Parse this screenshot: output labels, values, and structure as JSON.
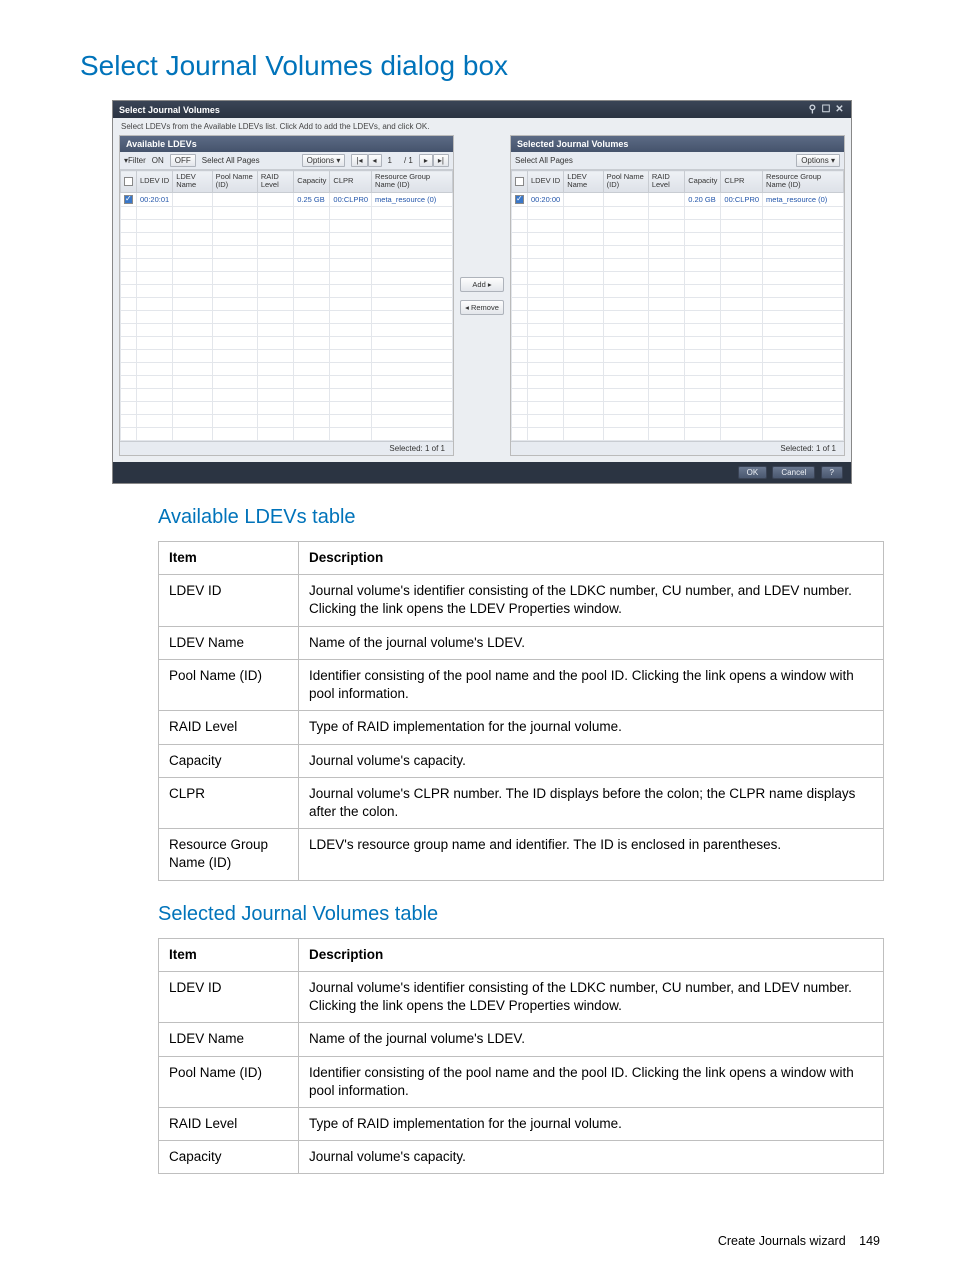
{
  "page": {
    "title": "Select Journal Volumes dialog box",
    "footer_text": "Create Journals wizard",
    "footer_page": "149"
  },
  "dialog": {
    "title": "Select Journal Volumes",
    "instruction": "Select LDEVs from the Available LDEVs list. Click Add to add the LDEVs, and click OK.",
    "add_label": "Add ▸",
    "remove_label": "◂ Remove",
    "ok_label": "OK",
    "cancel_label": "Cancel",
    "help_label": "?",
    "available": {
      "header": "Available LDEVs",
      "filter_label": "▾Filter",
      "filter_on": "ON",
      "filter_off": "OFF",
      "select_all": "Select All Pages",
      "options_label": "Options ▾",
      "pager_page": "1",
      "pager_total": "/ 1",
      "cols": [
        "",
        "LDEV ID",
        "LDEV Name",
        "Pool Name (ID)",
        "RAID Level",
        "Capacity",
        "CLPR",
        "Resource Group Name (ID)"
      ],
      "row": [
        "",
        "00:20:01",
        "",
        "",
        "",
        "0.25 GB",
        "00:CLPR0",
        "meta_resource (0)"
      ],
      "footer": "Selected:  1   of  1"
    },
    "selected": {
      "header": "Selected Journal Volumes",
      "select_all": "Select All Pages",
      "options_label": "Options ▾",
      "cols": [
        "",
        "LDEV ID",
        "LDEV Name",
        "Pool Name (ID)",
        "RAID Level",
        "Capacity",
        "CLPR",
        "Resource Group Name (ID)"
      ],
      "row": [
        "",
        "00:20:00",
        "",
        "",
        "",
        "0.20 GB",
        "00:CLPR0",
        "meta_resource (0)"
      ],
      "footer": "Selected:  1   of  1"
    }
  },
  "sections": {
    "available_title": "Available LDEVs table",
    "selected_title": "Selected Journal Volumes table",
    "header_item": "Item",
    "header_desc": "Description"
  },
  "available_table": [
    {
      "item": "LDEV ID",
      "desc": "Journal volume's identifier consisting of the LDKC number, CU number, and LDEV number. Clicking the link opens the LDEV Properties window."
    },
    {
      "item": "LDEV Name",
      "desc": "Name of the journal volume's LDEV."
    },
    {
      "item": "Pool Name (ID)",
      "desc": "Identifier consisting of the pool name and the pool ID. Clicking the link opens a window with pool information."
    },
    {
      "item": "RAID Level",
      "desc": "Type of RAID implementation for the journal volume."
    },
    {
      "item": "Capacity",
      "desc": "Journal volume's capacity."
    },
    {
      "item": "CLPR",
      "desc": "Journal volume's CLPR number. The ID displays before the colon; the CLPR name displays after the colon."
    },
    {
      "item": "Resource Group Name (ID)",
      "desc": "LDEV's resource group name and identifier. The ID is enclosed in parentheses."
    }
  ],
  "selected_table": [
    {
      "item": "LDEV ID",
      "desc": "Journal volume's identifier consisting of the LDKC number, CU number, and LDEV number. Clicking the link opens the LDEV Properties window."
    },
    {
      "item": "LDEV Name",
      "desc": "Name of the journal volume's LDEV."
    },
    {
      "item": "Pool Name (ID)",
      "desc": "Identifier consisting of the pool name and the pool ID. Clicking the link opens a window with pool information."
    },
    {
      "item": "RAID Level",
      "desc": "Type of RAID implementation for the journal volume."
    },
    {
      "item": "Capacity",
      "desc": "Journal volume's capacity."
    }
  ]
}
